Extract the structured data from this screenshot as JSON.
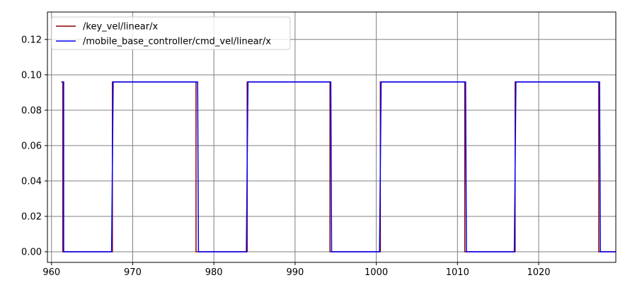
{
  "chart_data": {
    "type": "line",
    "title": "",
    "xlabel": "",
    "ylabel": "",
    "xlim": [
      959.5,
      1029.5
    ],
    "ylim": [
      -0.006,
      0.1355
    ],
    "grid": true,
    "legend_position": "top-left",
    "x_ticks": [
      960,
      970,
      980,
      990,
      1000,
      1010,
      1020
    ],
    "x_tick_labels": [
      "960",
      "970",
      "980",
      "990",
      "1000",
      "1010",
      "1020"
    ],
    "y_ticks": [
      0.0,
      0.02,
      0.04,
      0.06,
      0.08,
      0.1,
      0.12
    ],
    "y_tick_labels": [
      "0.00",
      "0.02",
      "0.04",
      "0.06",
      "0.08",
      "0.10",
      "0.12"
    ],
    "series": [
      {
        "name": "/key_vel/linear/x",
        "color": "#8b0000",
        "x": [
          961.2,
          961.4,
          961.4,
          967.5,
          967.5,
          977.8,
          977.8,
          984.1,
          984.1,
          994.3,
          994.3,
          1000.5,
          1000.5,
          1010.9,
          1010.9,
          1017.1,
          1017.1,
          1027.4,
          1027.4,
          1029.5
        ],
        "y": [
          0.096,
          0.096,
          0.0,
          0.0,
          0.096,
          0.096,
          0.0,
          0.0,
          0.096,
          0.096,
          0.0,
          0.0,
          0.096,
          0.096,
          0.0,
          0.0,
          0.096,
          0.096,
          0.0,
          0.0
        ]
      },
      {
        "name": "/mobile_base_controller/cmd_vel/linear/x",
        "color": "#0000ff",
        "x": [
          961.3,
          961.5,
          961.5,
          967.4,
          967.6,
          978.0,
          978.1,
          984.0,
          984.2,
          994.4,
          994.5,
          1000.4,
          1000.6,
          1011.0,
          1011.1,
          1017.0,
          1017.2,
          1027.5,
          1027.6,
          1029.5
        ],
        "y": [
          0.096,
          0.096,
          0.0,
          0.0,
          0.096,
          0.096,
          0.0,
          0.0,
          0.096,
          0.096,
          0.0,
          0.0,
          0.096,
          0.096,
          0.0,
          0.0,
          0.096,
          0.096,
          0.0,
          0.0
        ]
      }
    ]
  }
}
